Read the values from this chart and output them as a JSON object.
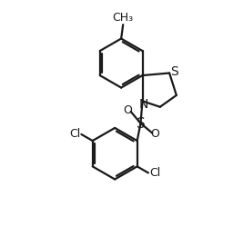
{
  "background": "#ffffff",
  "line_color": "#1a1a1a",
  "line_width": 1.6,
  "label_fontsize": 9,
  "fig_width": 2.56,
  "fig_height": 2.6,
  "dpi": 100,
  "xlim": [
    0.0,
    9.0
  ],
  "ylim": [
    0.5,
    10.5
  ]
}
